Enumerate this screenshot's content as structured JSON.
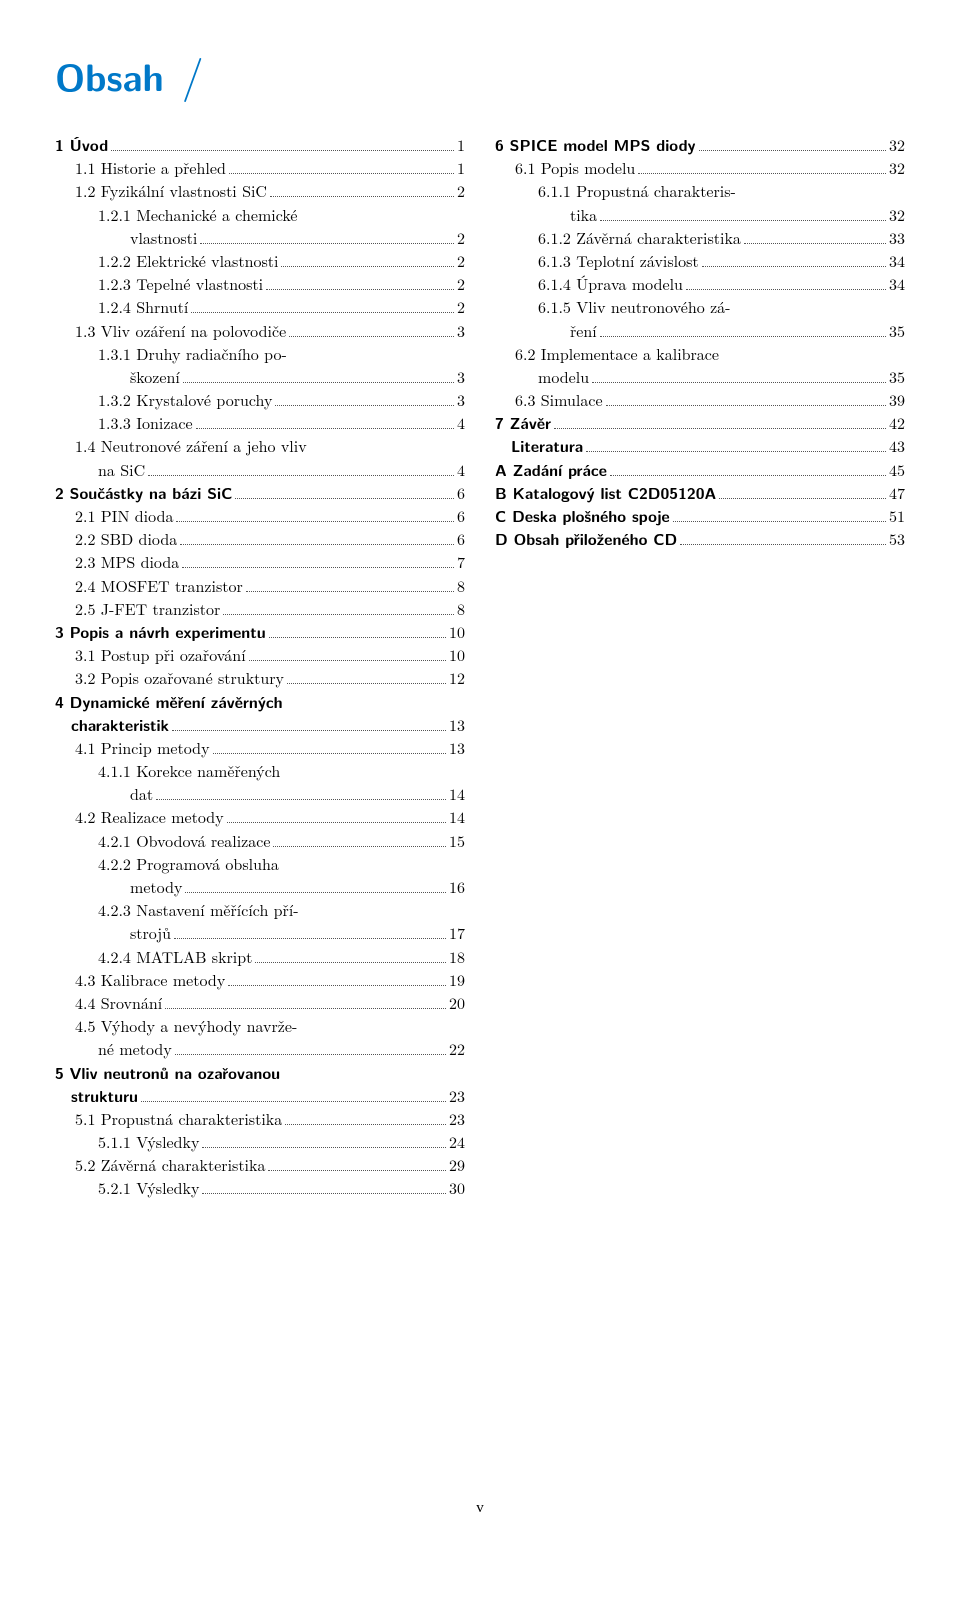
{
  "title": "Obsah",
  "footer": "v",
  "left": [
    {
      "num": "1",
      "text": "Úvod",
      "page": "1",
      "indent": 0,
      "bold": true
    },
    {
      "num": "1.1",
      "text": "Historie a přehled",
      "page": "1",
      "indent": 1
    },
    {
      "num": "1.2",
      "text": "Fyzikální vlastnosti SiC",
      "page": "2",
      "indent": 1
    },
    {
      "num": "1.2.1",
      "text": "Mechanické a chemické",
      "indent": 2,
      "cont": true
    },
    {
      "text": "vlastnosti",
      "page": "2",
      "indent": "2c"
    },
    {
      "num": "1.2.2",
      "text": "Elektrické vlastnosti",
      "page": "2",
      "indent": 2
    },
    {
      "num": "1.2.3",
      "text": "Tepelné vlastnosti",
      "page": "2",
      "indent": 2
    },
    {
      "num": "1.2.4",
      "text": "Shrnutí",
      "page": "2",
      "indent": 2
    },
    {
      "num": "1.3",
      "text": "Vliv ozáření na polovodiče",
      "page": "3",
      "indent": 1
    },
    {
      "num": "1.3.1",
      "text": "Druhy radiačního po-",
      "indent": 2,
      "cont": true
    },
    {
      "text": "škození",
      "page": "3",
      "indent": "2c"
    },
    {
      "num": "1.3.2",
      "text": "Krystalové poruchy",
      "page": "3",
      "indent": 2
    },
    {
      "num": "1.3.3",
      "text": "Ionizace",
      "page": "4",
      "indent": 2
    },
    {
      "num": "1.4",
      "text": "Neutronové záření a jeho vliv",
      "indent": 1,
      "cont": true
    },
    {
      "text": "na SiC",
      "page": "4",
      "indent": "1c"
    },
    {
      "num": "2",
      "text": "Součástky na bázi SiC",
      "page": "6",
      "indent": 0,
      "bold": true
    },
    {
      "num": "2.1",
      "text": "PIN dioda",
      "page": "6",
      "indent": 1
    },
    {
      "num": "2.2",
      "text": "SBD dioda",
      "page": "6",
      "indent": 1
    },
    {
      "num": "2.3",
      "text": "MPS dioda",
      "page": "7",
      "indent": 1
    },
    {
      "num": "2.4",
      "text": "MOSFET tranzistor",
      "page": "8",
      "indent": 1
    },
    {
      "num": "2.5",
      "text": "J-FET tranzistor",
      "page": "8",
      "indent": 1
    },
    {
      "num": "3",
      "text": "Popis a návrh experimentu",
      "page": "10",
      "indent": 0,
      "bold": true
    },
    {
      "num": "3.1",
      "text": "Postup při ozařování",
      "page": "10",
      "indent": 1
    },
    {
      "num": "3.2",
      "text": "Popis ozařované struktury",
      "page": "12",
      "indent": 1
    },
    {
      "num": "4",
      "text": "Dynamické měření závěrných",
      "indent": 0,
      "bold": true,
      "cont": true
    },
    {
      "text": "charakteristik",
      "page": "13",
      "indent": "1c",
      "bold": true,
      "contIndent": "16px"
    },
    {
      "num": "4.1",
      "text": "Princip metody",
      "page": "13",
      "indent": 1
    },
    {
      "num": "4.1.1",
      "text": "Korekce naměřených",
      "indent": 2,
      "cont": true
    },
    {
      "text": "dat",
      "page": "14",
      "indent": "2c"
    },
    {
      "num": "4.2",
      "text": "Realizace metody",
      "page": "14",
      "indent": 1
    },
    {
      "num": "4.2.1",
      "text": "Obvodová realizace",
      "page": "15",
      "indent": 2
    },
    {
      "num": "4.2.2",
      "text": "Programová obsluha",
      "indent": 2,
      "cont": true
    },
    {
      "text": "metody",
      "page": "16",
      "indent": "2c"
    },
    {
      "num": "4.2.3",
      "text": "Nastavení měřících pří-",
      "indent": 2,
      "cont": true
    },
    {
      "text": "strojů",
      "page": "17",
      "indent": "2c"
    },
    {
      "num": "4.2.4",
      "text": "MATLAB skript",
      "page": "18",
      "indent": 2
    },
    {
      "num": "4.3",
      "text": "Kalibrace metody",
      "page": "19",
      "indent": 1
    },
    {
      "num": "4.4",
      "text": "Srovnání",
      "page": "20",
      "indent": 1
    },
    {
      "num": "4.5",
      "text": "Výhody a nevýhody navrže-",
      "indent": 1,
      "cont": true
    },
    {
      "text": "né metody",
      "page": "22",
      "indent": "1c"
    },
    {
      "num": "5",
      "text": "Vliv neutronů na ozařovanou",
      "indent": 0,
      "bold": true,
      "cont": true
    },
    {
      "text": "strukturu",
      "page": "23",
      "indent": "1c",
      "bold": true,
      "contIndent": "16px"
    },
    {
      "num": "5.1",
      "text": "Propustná charakteristika",
      "page": "23",
      "indent": 1
    },
    {
      "num": "5.1.1",
      "text": "Výsledky",
      "page": "24",
      "indent": 2
    },
    {
      "num": "5.2",
      "text": "Závěrná charakteristika",
      "page": "29",
      "indent": 1
    },
    {
      "num": "5.2.1",
      "text": "Výsledky",
      "page": "30",
      "indent": 2
    }
  ],
  "right": [
    {
      "num": "6",
      "text": "SPICE model MPS diody",
      "page": "32",
      "indent": 0,
      "bold": true
    },
    {
      "num": "6.1",
      "text": "Popis modelu",
      "page": "32",
      "indent": 1
    },
    {
      "num": "6.1.1",
      "text": "Propustná charakteris-",
      "indent": 2,
      "cont": true
    },
    {
      "text": "tika",
      "page": "32",
      "indent": "2c"
    },
    {
      "num": "6.1.2",
      "text": "Závěrná charakteristika",
      "page": "33",
      "indent": 2,
      "narrowDots": true
    },
    {
      "num": "6.1.3",
      "text": "Teplotní závislost",
      "page": "34",
      "indent": 2
    },
    {
      "num": "6.1.4",
      "text": "Úprava modelu",
      "page": "34",
      "indent": 2
    },
    {
      "num": "6.1.5",
      "text": "Vliv neutronového zá-",
      "indent": 2,
      "cont": true
    },
    {
      "text": "ření",
      "page": "35",
      "indent": "2c"
    },
    {
      "num": "6.2",
      "text": "Implementace a kalibrace",
      "indent": 1,
      "cont": true
    },
    {
      "text": "modelu",
      "page": "35",
      "indent": "1c"
    },
    {
      "num": "6.3",
      "text": "Simulace",
      "page": "39",
      "indent": 1
    },
    {
      "num": "7",
      "text": "Závěr",
      "page": "42",
      "indent": 0,
      "bold": true
    },
    {
      "text": "Literatura",
      "page": "43",
      "indent": "lit",
      "bold": true
    },
    {
      "num": "A",
      "text": "Zadání práce",
      "page": "45",
      "indent": 0,
      "bold": true
    },
    {
      "num": "B",
      "text": "Katalogový list C2D05120A",
      "page": "47",
      "indent": 0,
      "bold": true
    },
    {
      "num": "C",
      "text": "Deska plošného spoje",
      "page": "51",
      "indent": 0,
      "bold": true
    },
    {
      "num": "D",
      "text": "Obsah přiloženého CD",
      "page": "53",
      "indent": 0,
      "bold": true
    }
  ]
}
